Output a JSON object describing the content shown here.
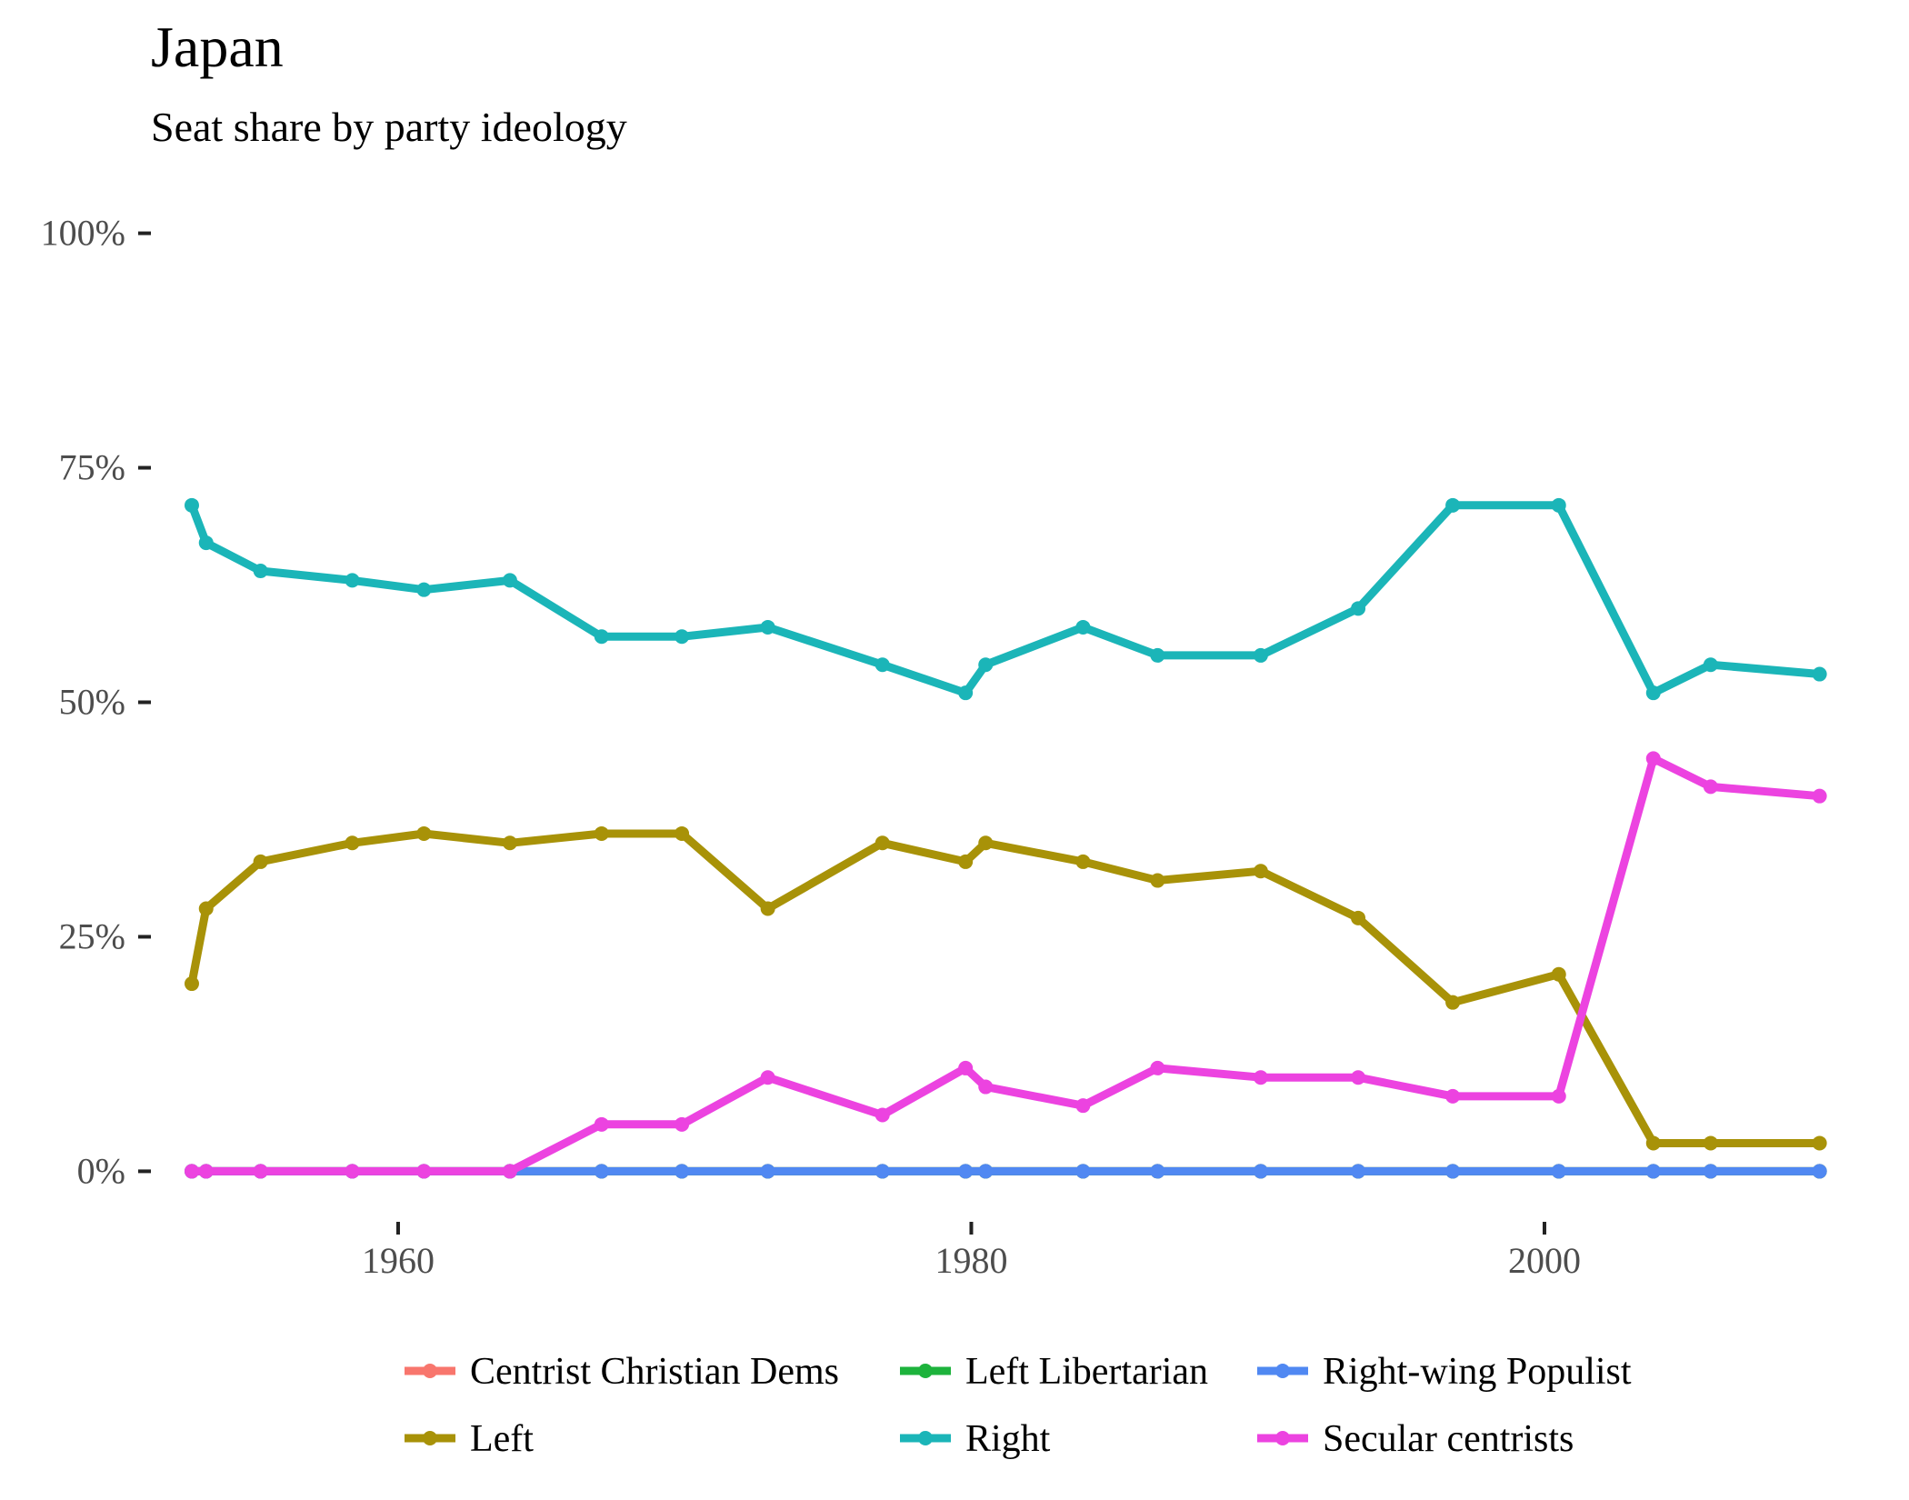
{
  "chart_data": {
    "type": "line",
    "title": "Japan",
    "subtitle": "Seat share by party ideology",
    "xlabel": "",
    "ylabel": "",
    "xlim": [
      1951.5,
      2010.5
    ],
    "ylim": [
      -5,
      105
    ],
    "x_ticks": [
      1960,
      1980,
      2000
    ],
    "x_tick_labels": [
      "1960",
      "1980",
      "2000"
    ],
    "y_ticks": [
      0,
      25,
      50,
      75,
      100
    ],
    "y_tick_labels": [
      "0%",
      "25%",
      "50%",
      "75%",
      "100%"
    ],
    "grid": false,
    "legend_position": "bottom",
    "x": [
      1952.8,
      1953.3,
      1955.2,
      1958.4,
      1960.9,
      1963.9,
      1967.1,
      1969.9,
      1972.9,
      1976.9,
      1979.8,
      1980.5,
      1983.9,
      1986.5,
      1990.1,
      1993.5,
      1996.8,
      2000.5,
      2003.8,
      2005.8,
      2009.6
    ],
    "series": [
      {
        "name": "Centrist Christian Dems",
        "color": "#F8766D",
        "values": [
          0,
          0,
          0,
          0,
          0,
          0,
          0,
          0,
          0,
          0,
          0,
          0,
          0,
          0,
          0,
          0,
          0,
          0,
          0,
          0,
          0
        ]
      },
      {
        "name": "Left Libertarian",
        "color": "#1DB33C",
        "values": [
          0,
          0,
          0,
          0,
          0,
          0,
          0,
          0,
          0,
          0,
          0,
          0,
          0,
          0,
          0,
          0,
          0,
          0,
          0,
          0,
          0
        ]
      },
      {
        "name": "Right-wing Populist",
        "color": "#5088F2",
        "values": [
          0,
          0,
          0,
          0,
          0,
          0,
          0,
          0,
          0,
          0,
          0,
          0,
          0,
          0,
          0,
          0,
          0,
          0,
          0,
          0,
          0
        ]
      },
      {
        "name": "Left",
        "color": "#A89208",
        "values": [
          20,
          28,
          33,
          35,
          36,
          35,
          36,
          36,
          28,
          35,
          33,
          35,
          33,
          31,
          32,
          27,
          18,
          21,
          3,
          3,
          3
        ]
      },
      {
        "name": "Right",
        "color": "#1BB5B8",
        "values": [
          71,
          67,
          64,
          63,
          62,
          63,
          57,
          57,
          58,
          54,
          51,
          54,
          58,
          55,
          55,
          60,
          71,
          71,
          51,
          54,
          53
        ]
      },
      {
        "name": "Secular centrists",
        "color": "#EC43E0",
        "values": [
          0,
          0,
          0,
          0,
          0,
          0,
          5,
          5,
          10,
          6,
          11,
          9,
          7,
          11,
          10,
          10,
          8,
          8,
          44,
          41,
          40
        ]
      }
    ],
    "legend_order": [
      "Centrist Christian Dems",
      "Left Libertarian",
      "Right-wing Populist",
      "Left",
      "Right",
      "Secular centrists"
    ]
  }
}
